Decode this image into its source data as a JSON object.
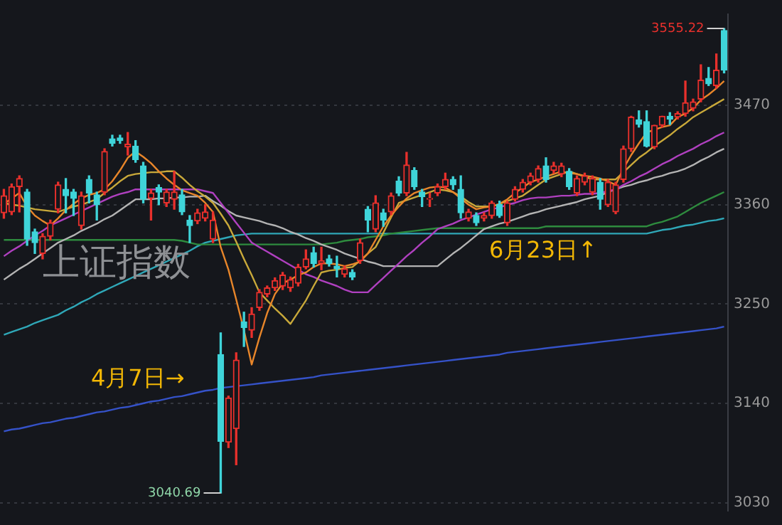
{
  "chart_data": {
    "type": "candlestick",
    "title": "上证指数",
    "categories": [
      null,
      null,
      null,
      null,
      null,
      null,
      null,
      null,
      null,
      null,
      null,
      null,
      null,
      null,
      null,
      null,
      null,
      null,
      null,
      null,
      null,
      null,
      null,
      null,
      null,
      null,
      null,
      null,
      null,
      null,
      null,
      null,
      null,
      null,
      null,
      null,
      null,
      null,
      null,
      null,
      null,
      null,
      null,
      null,
      null,
      null,
      null,
      null,
      null,
      null,
      null,
      null,
      null,
      null,
      null,
      null,
      null,
      null,
      null,
      null,
      null,
      null,
      null,
      null,
      null,
      null,
      null,
      null,
      null,
      null,
      null,
      null,
      null,
      null,
      null,
      null,
      null,
      null,
      null,
      null,
      null,
      null,
      null,
      null,
      null,
      null,
      null,
      null,
      null,
      null,
      null,
      null,
      null,
      null
    ],
    "ohlc": [
      [
        3351,
        3377,
        3345,
        3370
      ],
      [
        3352,
        3383,
        3349,
        3380
      ],
      [
        3380,
        3392,
        3352,
        3389
      ],
      [
        3374,
        3377,
        3315,
        3322
      ],
      [
        3330,
        3333,
        3306,
        3318
      ],
      [
        3306,
        3328,
        3300,
        3325
      ],
      [
        3325,
        3343,
        3321,
        3340
      ],
      [
        3355,
        3385,
        3351,
        3382
      ],
      [
        3377,
        3389,
        3351,
        3370
      ],
      [
        3374,
        3377,
        3348,
        3367
      ],
      [
        3337,
        3374,
        3333,
        3370
      ],
      [
        3388,
        3392,
        3362,
        3373
      ],
      [
        3371,
        3374,
        3343,
        3360
      ],
      [
        3374,
        3422,
        3371,
        3419
      ],
      [
        3433,
        3437,
        3425,
        3428
      ],
      [
        3434,
        3437,
        3428,
        3431
      ],
      [
        3424,
        3440,
        3415,
        3427
      ],
      [
        3425,
        3431,
        3407,
        3410
      ],
      [
        3403,
        3407,
        3362,
        3366
      ],
      [
        3367,
        3377,
        3343,
        3373
      ],
      [
        3379,
        3382,
        3360,
        3374
      ],
      [
        3362,
        3377,
        3358,
        3374
      ],
      [
        3366,
        3397,
        3355,
        3374
      ],
      [
        3371,
        3377,
        3349,
        3352
      ],
      [
        3343,
        3348,
        3318,
        3337
      ],
      [
        3342,
        3355,
        3339,
        3351
      ],
      [
        3345,
        3360,
        3342,
        3352
      ],
      [
        3322,
        3352,
        3318,
        3343
      ],
      [
        3194,
        3218,
        3040.69,
        3098
      ],
      [
        3097,
        3148,
        3091,
        3146
      ],
      [
        3112,
        3196,
        3072,
        3188
      ],
      [
        3230,
        3241,
        3203,
        3224
      ],
      [
        3221,
        3246,
        3213,
        3239
      ],
      [
        3246,
        3266,
        3243,
        3263
      ],
      [
        3261,
        3270,
        3258,
        3268
      ],
      [
        3268,
        3279,
        3265,
        3276
      ],
      [
        3270,
        3285,
        3266,
        3282
      ],
      [
        3268,
        3280,
        3264,
        3277
      ],
      [
        3273,
        3294,
        3270,
        3291
      ],
      [
        3291,
        3310,
        3289,
        3300
      ],
      [
        3307,
        3313,
        3291,
        3295
      ],
      [
        3295,
        3313,
        3288,
        3298
      ],
      [
        3300,
        3304,
        3292,
        3295
      ],
      [
        3292,
        3303,
        3280,
        3289
      ],
      [
        3283,
        3292,
        3280,
        3289
      ],
      [
        3285,
        3288,
        3277,
        3280
      ],
      [
        3298,
        3322,
        3295,
        3318
      ],
      [
        3355,
        3358,
        3330,
        3343
      ],
      [
        3333,
        3370,
        3330,
        3362
      ],
      [
        3351,
        3355,
        3336,
        3343
      ],
      [
        3352,
        3373,
        3349,
        3370
      ],
      [
        3386,
        3391,
        3370,
        3373
      ],
      [
        3373,
        3418,
        3370,
        3404
      ],
      [
        3398,
        3401,
        3377,
        3380
      ],
      [
        3374,
        3377,
        3358,
        3369
      ],
      [
        3366,
        3373,
        3358,
        3367
      ],
      [
        3373,
        3383,
        3370,
        3380
      ],
      [
        3380,
        3395,
        3377,
        3388
      ],
      [
        3388,
        3391,
        3377,
        3382
      ],
      [
        3377,
        3392,
        3345,
        3351
      ],
      [
        3345,
        3355,
        3342,
        3352
      ],
      [
        3348,
        3351,
        3337,
        3340
      ],
      [
        3345,
        3351,
        3342,
        3348
      ],
      [
        3348,
        3364,
        3345,
        3362
      ],
      [
        3360,
        3364,
        3346,
        3348
      ],
      [
        3340,
        3364,
        3337,
        3362
      ],
      [
        3366,
        3380,
        3364,
        3377
      ],
      [
        3377,
        3388,
        3374,
        3385
      ],
      [
        3385,
        3395,
        3382,
        3392
      ],
      [
        3388,
        3403,
        3385,
        3400
      ],
      [
        3403,
        3412,
        3385,
        3388
      ],
      [
        3398,
        3407,
        3395,
        3403
      ],
      [
        3394,
        3406,
        3391,
        3403
      ],
      [
        3397,
        3400,
        3377,
        3380
      ],
      [
        3373,
        3392,
        3370,
        3389
      ],
      [
        3385,
        3395,
        3382,
        3392
      ],
      [
        3374,
        3392,
        3371,
        3389
      ],
      [
        3385,
        3389,
        3355,
        3366
      ],
      [
        3360,
        3388,
        3358,
        3385
      ],
      [
        3352,
        3385,
        3350,
        3382
      ],
      [
        3388,
        3425,
        3385,
        3422
      ],
      [
        3422,
        3458,
        3419,
        3457
      ],
      [
        3454,
        3464,
        3446,
        3449
      ],
      [
        3452,
        3464,
        3424,
        3425
      ],
      [
        3424,
        3448,
        3422,
        3448
      ],
      [
        3448,
        3458,
        3446,
        3458
      ],
      [
        3458,
        3462,
        3449,
        3455
      ],
      [
        3457,
        3463,
        3455,
        3461
      ],
      [
        3461,
        3497,
        3458,
        3473
      ],
      [
        3467,
        3477,
        3464,
        3474
      ],
      [
        3477,
        3515,
        3474,
        3498
      ],
      [
        3500,
        3512,
        3492,
        3494
      ],
      [
        3492,
        3527,
        3489,
        3509
      ],
      [
        3553,
        3555.22,
        3506,
        3509
      ]
    ],
    "colors": [
      "#e8302c",
      "#e8302c",
      "#e8302c",
      "#3fd4d9",
      "#3fd4d9",
      "#e8302c",
      "#e8302c",
      "#e8302c",
      "#3fd4d9",
      "#3fd4d9",
      "#e8302c",
      "#3fd4d9",
      "#3fd4d9",
      "#e8302c",
      "#3fd4d9",
      "#3fd4d9",
      "#e8302c",
      "#3fd4d9",
      "#3fd4d9",
      "#e8302c",
      "#3fd4d9",
      "#e8302c",
      "#e8302c",
      "#3fd4d9",
      "#3fd4d9",
      "#e8302c",
      "#e8302c",
      "#e8302c",
      "#3fd4d9",
      "#e8302c",
      "#e8302c",
      "#3fd4d9",
      "#e8302c",
      "#e8302c",
      "#e8302c",
      "#e8302c",
      "#e8302c",
      "#e8302c",
      "#e8302c",
      "#e8302c",
      "#3fd4d9",
      "#e8302c",
      "#3fd4d9",
      "#3fd4d9",
      "#e8302c",
      "#3fd4d9",
      "#e8302c",
      "#3fd4d9",
      "#e8302c",
      "#3fd4d9",
      "#e8302c",
      "#3fd4d9",
      "#e8302c",
      "#3fd4d9",
      "#3fd4d9",
      "#e8302c",
      "#e8302c",
      "#e8302c",
      "#3fd4d9",
      "#3fd4d9",
      "#e8302c",
      "#3fd4d9",
      "#e8302c",
      "#e8302c",
      "#3fd4d9",
      "#e8302c",
      "#e8302c",
      "#e8302c",
      "#e8302c",
      "#e8302c",
      "#3fd4d9",
      "#e8302c",
      "#e8302c",
      "#3fd4d9",
      "#e8302c",
      "#e8302c",
      "#e8302c",
      "#3fd4d9",
      "#e8302c",
      "#e8302c",
      "#e8302c",
      "#e8302c",
      "#3fd4d9",
      "#3fd4d9",
      "#e8302c",
      "#e8302c",
      "#3fd4d9",
      "#e8302c",
      "#e8302c",
      "#e8302c",
      "#e8302c",
      "#3fd4d9",
      "#e8302c",
      "#3fd4d9"
    ],
    "series": [
      {
        "type": "line",
        "color": "#e8862a",
        "values": [
          3361,
          3367,
          3373,
          3358,
          3348,
          3342,
          3337,
          3345,
          3354,
          3361,
          3367,
          3371,
          3373,
          3377,
          3386,
          3398,
          3412,
          3419,
          3413,
          3406,
          3397,
          3389,
          3382,
          3376,
          3373,
          3370,
          3362,
          3352,
          3313,
          3288,
          3255,
          3221,
          3183,
          3213,
          3240,
          3261,
          3273,
          3277,
          3282,
          3285,
          3291,
          3295,
          3295,
          3294,
          3292,
          3294,
          3297,
          3306,
          3321,
          3336,
          3348,
          3358,
          3367,
          3373,
          3376,
          3379,
          3380,
          3379,
          3374,
          3367,
          3360,
          3355,
          3357,
          3358,
          3361,
          3366,
          3373,
          3379,
          3385,
          3388,
          3391,
          3394,
          3397,
          3395,
          3394,
          3392,
          3391,
          3389,
          3386,
          3382,
          3400,
          3415,
          3428,
          3440,
          3443,
          3446,
          3448,
          3457,
          3461,
          3467,
          3476,
          3482,
          3489,
          3497
        ]
      },
      {
        "type": "line",
        "color": "#c9a93a",
        "values": [
          3362,
          3360,
          3359,
          3357,
          3355,
          3354,
          3353,
          3352,
          3355,
          3358,
          3360,
          3363,
          3366,
          3373,
          3379,
          3386,
          3392,
          3394,
          3395,
          3396,
          3396,
          3397,
          3397,
          3390,
          3382,
          3375,
          3369,
          3362,
          3350,
          3337,
          3319,
          3300,
          3282,
          3263,
          3254,
          3245,
          3237,
          3228,
          3241,
          3254,
          3270,
          3285,
          3287,
          3288,
          3290,
          3291,
          3298,
          3306,
          3313,
          3329,
          3346,
          3362,
          3365,
          3368,
          3371,
          3374,
          3377,
          3376,
          3374,
          3369,
          3363,
          3358,
          3358,
          3358,
          3361,
          3364,
          3367,
          3370,
          3376,
          3382,
          3388,
          3391,
          3394,
          3397,
          3394,
          3391,
          3388,
          3388,
          3388,
          3388,
          3396,
          3404,
          3412,
          3418,
          3425,
          3431,
          3437,
          3444,
          3450,
          3457,
          3462,
          3467,
          3472,
          3477
        ]
      },
      {
        "type": "line",
        "color": "#b040c0",
        "values": [
          3303,
          3309,
          3314,
          3320,
          3326,
          3331,
          3337,
          3341,
          3345,
          3349,
          3353,
          3357,
          3361,
          3365,
          3369,
          3372,
          3374,
          3377,
          3377,
          3377,
          3377,
          3377,
          3377,
          3377,
          3377,
          3377,
          3375,
          3373,
          3362,
          3351,
          3340,
          3329,
          3318,
          3313,
          3308,
          3303,
          3298,
          3293,
          3288,
          3283,
          3280,
          3276,
          3273,
          3270,
          3266,
          3263,
          3263,
          3263,
          3271,
          3279,
          3287,
          3295,
          3303,
          3310,
          3318,
          3325,
          3333,
          3336,
          3339,
          3343,
          3346,
          3349,
          3352,
          3355,
          3357,
          3360,
          3362,
          3365,
          3367,
          3368,
          3368,
          3369,
          3370,
          3370,
          3371,
          3372,
          3372,
          3373,
          3375,
          3377,
          3382,
          3386,
          3391,
          3395,
          3400,
          3405,
          3409,
          3414,
          3418,
          3422,
          3427,
          3431,
          3436,
          3440
        ]
      },
      {
        "type": "line",
        "color": "#b4b4b4",
        "values": [
          3277,
          3283,
          3289,
          3294,
          3300,
          3306,
          3312,
          3318,
          3322,
          3326,
          3331,
          3335,
          3339,
          3344,
          3348,
          3354,
          3360,
          3366,
          3366,
          3366,
          3367,
          3367,
          3368,
          3368,
          3369,
          3369,
          3370,
          3364,
          3359,
          3353,
          3348,
          3346,
          3344,
          3342,
          3339,
          3337,
          3334,
          3330,
          3327,
          3323,
          3320,
          3316,
          3313,
          3310,
          3306,
          3303,
          3300,
          3297,
          3295,
          3292,
          3292,
          3292,
          3292,
          3292,
          3292,
          3292,
          3292,
          3299,
          3306,
          3312,
          3319,
          3326,
          3333,
          3336,
          3339,
          3341,
          3344,
          3347,
          3350,
          3352,
          3355,
          3357,
          3359,
          3361,
          3363,
          3366,
          3368,
          3370,
          3374,
          3377,
          3380,
          3382,
          3385,
          3387,
          3390,
          3392,
          3395,
          3397,
          3400,
          3404,
          3409,
          3413,
          3418,
          3422
        ]
      },
      {
        "type": "line",
        "color": "#2e8b3e",
        "values": [
          3321,
          3321,
          3321,
          3321,
          3321,
          3321,
          3321,
          3321,
          3321,
          3321,
          3321,
          3321,
          3321,
          3321,
          3321,
          3321,
          3321,
          3321,
          3321,
          3321,
          3321,
          3321,
          3321,
          3320,
          3318,
          3316,
          3316,
          3316,
          3316,
          3316,
          3316,
          3316,
          3316,
          3316,
          3316,
          3316,
          3316,
          3316,
          3316,
          3316,
          3316,
          3316,
          3317,
          3318,
          3320,
          3321,
          3322,
          3324,
          3325,
          3326,
          3328,
          3329,
          3330,
          3331,
          3332,
          3333,
          3334,
          3334,
          3334,
          3334,
          3334,
          3334,
          3334,
          3334,
          3334,
          3334,
          3334,
          3334,
          3334,
          3334,
          3336,
          3336,
          3336,
          3336,
          3336,
          3336,
          3336,
          3336,
          3336,
          3336,
          3336,
          3336,
          3336,
          3336,
          3339,
          3341,
          3344,
          3347,
          3352,
          3357,
          3362,
          3366,
          3370,
          3374
        ]
      },
      {
        "type": "line",
        "color": "#2fa8b8",
        "values": [
          3216,
          3219,
          3222,
          3225,
          3229,
          3232,
          3235,
          3238,
          3243,
          3247,
          3252,
          3256,
          3261,
          3265,
          3269,
          3273,
          3277,
          3281,
          3285,
          3289,
          3293,
          3297,
          3301,
          3305,
          3309,
          3314,
          3318,
          3320,
          3322,
          3324,
          3326,
          3327,
          3328,
          3328,
          3328,
          3328,
          3328,
          3328,
          3328,
          3328,
          3328,
          3328,
          3328,
          3328,
          3328,
          3328,
          3328,
          3328,
          3328,
          3328,
          3328,
          3328,
          3328,
          3328,
          3328,
          3328,
          3328,
          3328,
          3328,
          3328,
          3328,
          3328,
          3328,
          3328,
          3328,
          3328,
          3328,
          3328,
          3328,
          3328,
          3328,
          3328,
          3328,
          3328,
          3328,
          3328,
          3328,
          3328,
          3328,
          3328,
          3328,
          3328,
          3328,
          3328,
          3330,
          3332,
          3333,
          3335,
          3337,
          3338,
          3340,
          3342,
          3343,
          3345
        ]
      },
      {
        "type": "line",
        "color": "#3552c8",
        "values": [
          3109,
          3111,
          3112,
          3114,
          3116,
          3118,
          3119,
          3121,
          3123,
          3124,
          3126,
          3128,
          3130,
          3131,
          3133,
          3135,
          3136,
          3138,
          3140,
          3142,
          3143,
          3145,
          3147,
          3148,
          3150,
          3152,
          3154,
          3155,
          3157,
          3158,
          3159,
          3160,
          3161,
          3162,
          3163,
          3164,
          3165,
          3166,
          3167,
          3168,
          3169,
          3171,
          3172,
          3173,
          3174,
          3175,
          3176,
          3177,
          3178,
          3179,
          3180,
          3181,
          3182,
          3183,
          3184,
          3185,
          3186,
          3187,
          3188,
          3189,
          3190,
          3191,
          3192,
          3193,
          3194,
          3196,
          3197,
          3198,
          3199,
          3200,
          3201,
          3202,
          3203,
          3204,
          3205,
          3206,
          3207,
          3208,
          3209,
          3210,
          3211,
          3212,
          3213,
          3214,
          3215,
          3216,
          3217,
          3218,
          3219,
          3220,
          3221,
          3222,
          3223,
          3225
        ]
      }
    ],
    "ylim": [
      3021,
      3571
    ],
    "yticks": [
      3030,
      3140,
      3250,
      3360,
      3470
    ],
    "grid": "y",
    "tick_labels": "y",
    "annotations": [
      "3555.22",
      "3040.69",
      "4月7日→",
      "6月23日↑"
    ]
  }
}
